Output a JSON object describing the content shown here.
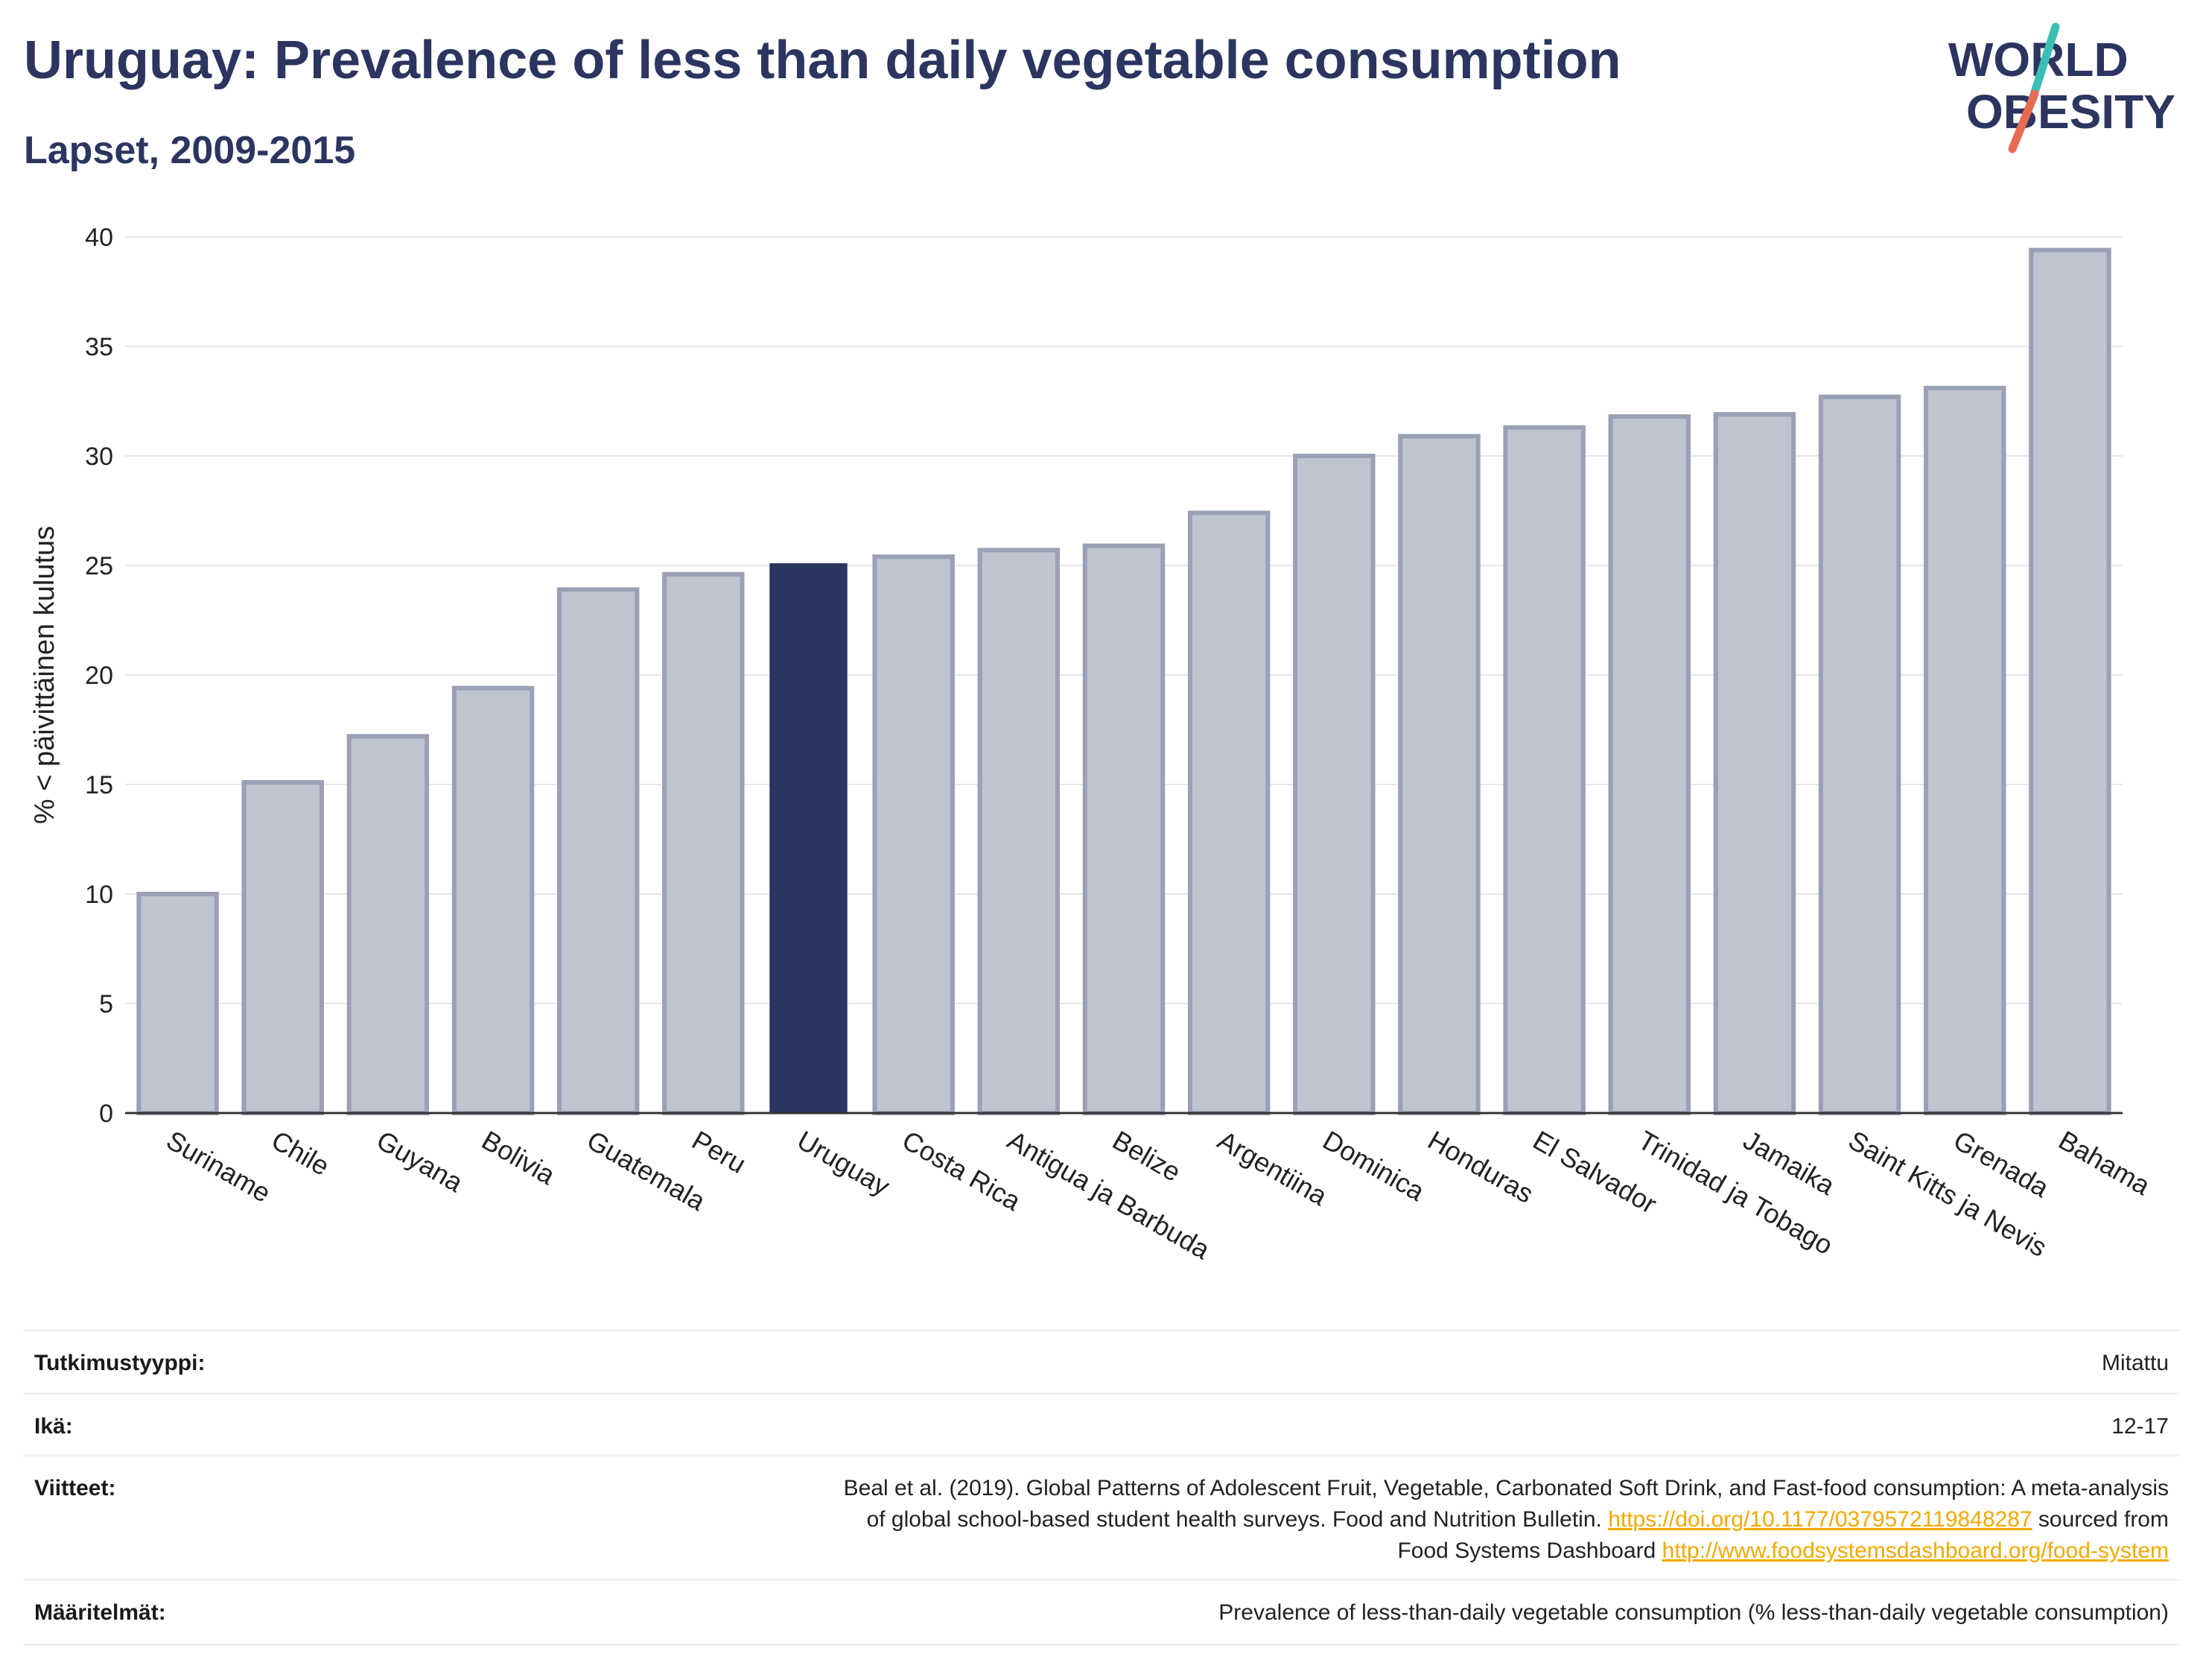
{
  "title": "Uruguay: Prevalence of less than daily vegetable consumption",
  "subtitle": "Lapset, 2009-2015",
  "logo": {
    "line1": "WORLD",
    "line2": "OBESITY"
  },
  "colors": {
    "highlight": "#2b3560",
    "bar": "#c0c4d1",
    "bar_border": "#9aa0b5",
    "link": "#f2a900",
    "title": "#2b3560"
  },
  "chart_data": {
    "type": "bar",
    "ylabel": "% < päivittäinen kulutus",
    "xlabel": "",
    "ylim": [
      0,
      40
    ],
    "yticks": [
      0,
      5,
      10,
      15,
      20,
      25,
      30,
      35,
      40
    ],
    "grid": true,
    "highlight": "Uruguay",
    "categories": [
      "Suriname",
      "Chile",
      "Guyana",
      "Bolivia",
      "Guatemala",
      "Peru",
      "Uruguay",
      "Costa Rica",
      "Antigua ja Barbuda",
      "Belize",
      "Argentiina",
      "Dominica",
      "Honduras",
      "El Salvador",
      "Trinidad ja Tobago",
      "Jamaika",
      "Saint Kitts ja Nevis",
      "Grenada",
      "Bahama"
    ],
    "values": [
      10.0,
      15.1,
      17.2,
      19.4,
      23.9,
      24.6,
      25.1,
      25.4,
      25.7,
      25.9,
      27.4,
      30.0,
      30.9,
      31.3,
      31.8,
      31.9,
      32.7,
      33.1,
      39.4
    ]
  },
  "details": {
    "study_type": {
      "label": "Tutkimustyyppi:",
      "value": "Mitattu"
    },
    "age": {
      "label": "Ikä:",
      "value": "12-17"
    },
    "references": {
      "label": "Viitteet:",
      "text1": "Beal et al. (2019). Global Patterns of Adolescent Fruit, Vegetable, Carbonated Soft Drink, and Fast-food consumption: A meta-analysis",
      "text2": "of global school-based student health surveys. Food and Nutrition Bulletin.",
      "link1": "https://doi.org/10.1177/0379572119848287",
      "text3": "sourced from",
      "text4": "Food Systems Dashboard",
      "link2": "http://www.foodsystemsdashboard.org/food-system"
    },
    "definitions": {
      "label": "Määritelmät:",
      "value": "Prevalence of less-than-daily vegetable consumption (% less-than-daily vegetable consumption)"
    }
  }
}
